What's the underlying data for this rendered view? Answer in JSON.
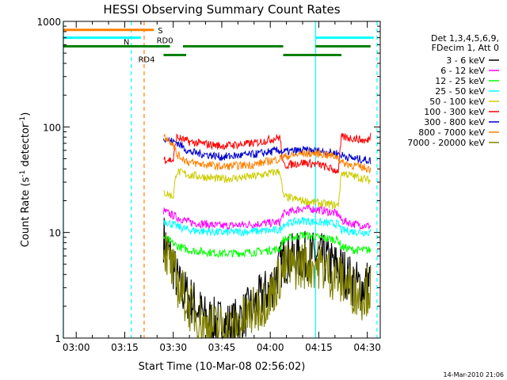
{
  "chart_data": {
    "type": "line",
    "title": "HESSI Observing Summary Count Rates",
    "xlabel": "Start Time (10-Mar-08 02:56:02)",
    "ylabel": "Count Rate (s",
    "ylabel_sup1": "-1",
    "ylabel_mid": " detector",
    "ylabel_sup2": "-1",
    "ylabel_end": ")",
    "y_scale": "log",
    "ylim": [
      1,
      1000
    ],
    "xlim": [
      "02:56:02",
      "04:34:00"
    ],
    "x_ticks": [
      "03:00",
      "03:15",
      "03:30",
      "03:45",
      "04:00",
      "04:15",
      "04:30"
    ],
    "y_ticks": [
      "1",
      "10",
      "100",
      "1000"
    ],
    "legend": {
      "placement": "top-right",
      "header": [
        "Det 1,3,4,5,6,9,",
        "FDecim 1, Att 0"
      ],
      "entries": [
        {
          "label": "3 - 6 keV",
          "color": "#000000"
        },
        {
          "label": "6 - 12 keV",
          "color": "#ff00ff"
        },
        {
          "label": "12 - 25 keV",
          "color": "#00ff00"
        },
        {
          "label": "25 - 50 keV",
          "color": "#00ffff"
        },
        {
          "label": "50 - 100 keV",
          "color": "#cccc00"
        },
        {
          "label": "100 - 300 keV",
          "color": "#ff0000"
        },
        {
          "label": "300 - 800 keV",
          "color": "#0000cc"
        },
        {
          "label": "800 - 7000 keV",
          "color": "#ff8000"
        },
        {
          "label": "7000 - 20000 keV",
          "color": "#808000"
        }
      ]
    },
    "data_start": "03:27",
    "data_end": "04:31",
    "series": [
      {
        "name": "3 - 6 keV",
        "color": "#000000",
        "points": [
          [
            "03:27",
            9
          ],
          [
            "03:29",
            6
          ],
          [
            "03:32",
            3
          ],
          [
            "03:36",
            2.2
          ],
          [
            "03:40",
            1.5
          ],
          [
            "03:48",
            1.3
          ],
          [
            "03:55",
            2
          ],
          [
            "04:00",
            3
          ],
          [
            "04:04",
            5.5
          ],
          [
            "04:10",
            6
          ],
          [
            "04:15",
            6
          ],
          [
            "04:19",
            5
          ],
          [
            "04:22",
            4.5
          ],
          [
            "04:25",
            3.5
          ],
          [
            "04:28",
            3
          ],
          [
            "04:31",
            3.5
          ]
        ]
      },
      {
        "name": "6 - 12 keV",
        "color": "#ff00ff",
        "points": [
          [
            "03:27",
            16
          ],
          [
            "03:31",
            14
          ],
          [
            "03:35",
            12.5
          ],
          [
            "03:45",
            11.5
          ],
          [
            "03:55",
            12
          ],
          [
            "04:03",
            12.5
          ],
          [
            "04:04",
            15
          ],
          [
            "04:10",
            17
          ],
          [
            "04:15",
            16.5
          ],
          [
            "04:21",
            15
          ],
          [
            "04:22",
            13
          ],
          [
            "04:26",
            12
          ],
          [
            "04:31",
            11.5
          ]
        ]
      },
      {
        "name": "12 - 25 keV",
        "color": "#00ff00",
        "points": [
          [
            "03:27",
            9
          ],
          [
            "03:31",
            7.5
          ],
          [
            "03:35",
            6.8
          ],
          [
            "03:45",
            6.3
          ],
          [
            "03:55",
            6.5
          ],
          [
            "04:03",
            7
          ],
          [
            "04:04",
            8.5
          ],
          [
            "04:10",
            9.5
          ],
          [
            "04:15",
            9
          ],
          [
            "04:21",
            8.5
          ],
          [
            "04:22",
            7.3
          ],
          [
            "04:26",
            6.8
          ],
          [
            "04:31",
            6.8
          ]
        ]
      },
      {
        "name": "25 - 50 keV",
        "color": "#00ffff",
        "points": [
          [
            "03:27",
            13
          ],
          [
            "03:31",
            11.5
          ],
          [
            "03:35",
            10.5
          ],
          [
            "03:45",
            10
          ],
          [
            "03:55",
            10.3
          ],
          [
            "04:03",
            10.5
          ],
          [
            "04:04",
            12
          ],
          [
            "04:10",
            13
          ],
          [
            "04:15",
            12.5
          ],
          [
            "04:21",
            12
          ],
          [
            "04:22",
            10.5
          ],
          [
            "04:26",
            10.2
          ],
          [
            "04:31",
            10
          ]
        ]
      },
      {
        "name": "50 - 100 keV",
        "color": "#cccc00",
        "points": [
          [
            "03:27",
            24
          ],
          [
            "03:30",
            22
          ],
          [
            "03:31",
            38
          ],
          [
            "03:35",
            35
          ],
          [
            "03:45",
            32
          ],
          [
            "03:55",
            34
          ],
          [
            "04:03",
            38
          ],
          [
            "04:04",
            22
          ],
          [
            "04:10",
            20
          ],
          [
            "04:15",
            19
          ],
          [
            "04:21",
            18
          ],
          [
            "04:22",
            37
          ],
          [
            "04:26",
            34
          ],
          [
            "04:31",
            31
          ]
        ]
      },
      {
        "name": "100 - 300 keV",
        "color": "#ff0000",
        "points": [
          [
            "03:27",
            50
          ],
          [
            "03:30",
            48
          ],
          [
            "03:31",
            80
          ],
          [
            "03:35",
            72
          ],
          [
            "03:45",
            66
          ],
          [
            "03:55",
            70
          ],
          [
            "04:03",
            80
          ],
          [
            "04:04",
            43
          ],
          [
            "04:10",
            46
          ],
          [
            "04:15",
            44
          ],
          [
            "04:21",
            38
          ],
          [
            "04:22",
            80
          ],
          [
            "04:26",
            78
          ],
          [
            "04:30",
            73
          ],
          [
            "04:31",
            84
          ]
        ]
      },
      {
        "name": "300 - 800 keV",
        "color": "#0000cc",
        "points": [
          [
            "03:27",
            80
          ],
          [
            "03:30",
            72
          ],
          [
            "03:31",
            72
          ],
          [
            "03:35",
            58
          ],
          [
            "03:45",
            52
          ],
          [
            "03:55",
            55
          ],
          [
            "04:03",
            60
          ],
          [
            "04:04",
            58
          ],
          [
            "04:10",
            60
          ],
          [
            "04:15",
            59
          ],
          [
            "04:21",
            56
          ],
          [
            "04:22",
            54
          ],
          [
            "04:26",
            50
          ],
          [
            "04:31",
            48
          ]
        ]
      },
      {
        "name": "800 - 7000 keV",
        "color": "#ff8000",
        "points": [
          [
            "03:27",
            82
          ],
          [
            "03:30",
            70
          ],
          [
            "03:31",
            55
          ],
          [
            "03:35",
            46
          ],
          [
            "03:45",
            42
          ],
          [
            "03:55",
            44
          ],
          [
            "04:03",
            50
          ],
          [
            "04:04",
            52
          ],
          [
            "04:10",
            56
          ],
          [
            "04:15",
            56
          ],
          [
            "04:21",
            52
          ],
          [
            "04:22",
            46
          ],
          [
            "04:26",
            43
          ],
          [
            "04:31",
            40
          ]
        ]
      },
      {
        "name": "7000 - 20000 keV",
        "color": "#808000",
        "points": [
          [
            "03:27",
            8
          ],
          [
            "03:29",
            5
          ],
          [
            "03:32",
            3
          ],
          [
            "03:35",
            2
          ],
          [
            "03:40",
            1.3
          ],
          [
            "03:48",
            1.2
          ],
          [
            "03:55",
            1.8
          ],
          [
            "04:00",
            2.5
          ],
          [
            "04:04",
            4.5
          ],
          [
            "04:10",
            5
          ],
          [
            "04:15",
            5
          ],
          [
            "04:19",
            4
          ],
          [
            "04:22",
            3.5
          ],
          [
            "04:25",
            3
          ],
          [
            "04:28",
            2.5
          ],
          [
            "04:31",
            3
          ]
        ]
      }
    ],
    "flags": [
      {
        "label": "S",
        "color": "#ff8000",
        "segments": [
          [
            "02:56",
            "03:24"
          ]
        ],
        "level": 830
      },
      {
        "label": "N",
        "color": "#00ffff",
        "segments": [
          [
            "02:56",
            "03:20"
          ],
          [
            "04:14",
            "04:32"
          ]
        ],
        "level": 700
      },
      {
        "label": "RD0",
        "color": "#008000",
        "segments": [
          [
            "02:56",
            "03:29"
          ],
          [
            "03:33",
            "04:04"
          ],
          [
            "04:14",
            "04:31"
          ]
        ],
        "level": 580
      },
      {
        "label": "RD4",
        "color": "#008000",
        "segments": [
          [
            "03:27",
            "03:34"
          ],
          [
            "04:04",
            "04:22"
          ]
        ],
        "level": 480
      }
    ],
    "vertical_markers": [
      {
        "time": "02:56",
        "color": "#00ffff",
        "style": "solid"
      },
      {
        "time": "03:17",
        "color": "#00ffff",
        "style": "dashed"
      },
      {
        "time": "03:21",
        "color": "#ff8000",
        "style": "dashed"
      },
      {
        "time": "04:14",
        "color": "#00ffff",
        "style": "solid"
      },
      {
        "time": "04:33",
        "color": "#00ffff",
        "style": "dashed"
      }
    ]
  },
  "timestamp": "14-Mar-2010 21:06"
}
